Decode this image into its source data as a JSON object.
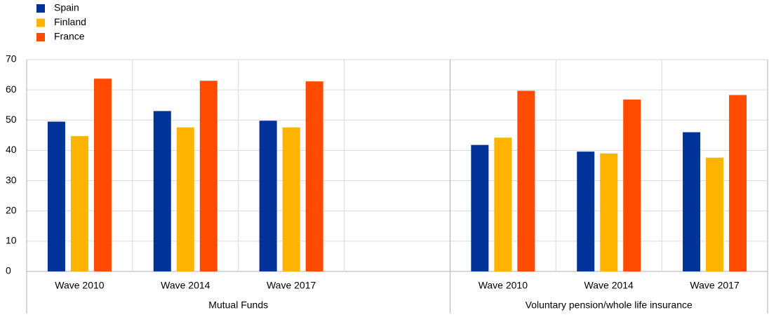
{
  "chart_data": {
    "type": "bar",
    "groups": [
      {
        "name": "Mutual Funds",
        "categories": [
          "Wave 2010",
          "Wave 2014",
          "Wave 2017",
          null
        ]
      },
      {
        "name": "Voluntary pension/whole life insurance",
        "categories": [
          "Wave 2010",
          "Wave 2014",
          "Wave 2017"
        ]
      }
    ],
    "series": [
      {
        "name": "Spain",
        "color": "#003299",
        "values": [
          49.5,
          53,
          49.8,
          null,
          41.8,
          39.6,
          46
        ]
      },
      {
        "name": "Finland",
        "color": "#ffb400",
        "values": [
          44.7,
          47.6,
          47.6,
          null,
          44.2,
          39,
          37.6
        ]
      },
      {
        "name": "France",
        "color": "#ff4b00",
        "values": [
          63.7,
          63,
          62.8,
          null,
          59.7,
          56.8,
          58.3
        ]
      }
    ],
    "ylim": [
      0,
      70
    ],
    "yticks": [
      0,
      10,
      20,
      30,
      40,
      50,
      60,
      70
    ],
    "grid": true,
    "legend": "top-left"
  }
}
